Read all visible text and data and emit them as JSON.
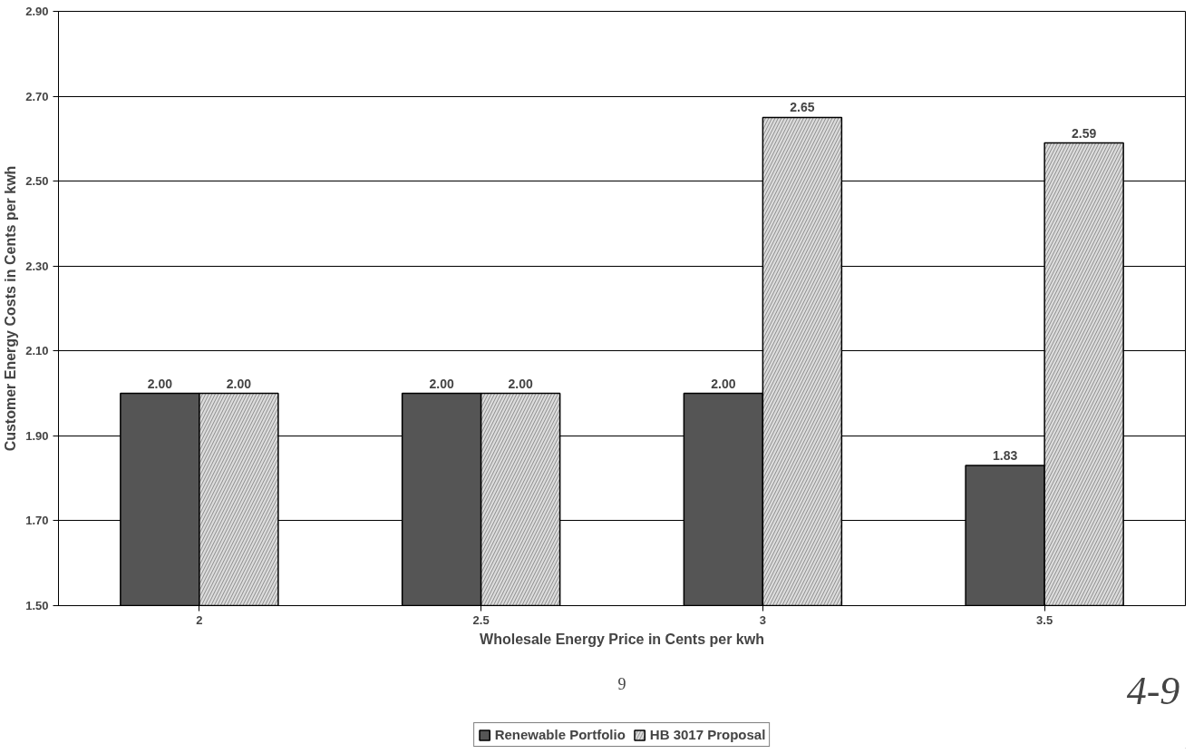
{
  "chart_data": {
    "type": "bar",
    "xlabel": "Wholesale Energy Price in Cents per kwh",
    "ylabel": "Customer Energy Costs in Cents per kwh",
    "categories": [
      "2",
      "2.5",
      "3",
      "3.5"
    ],
    "series": [
      {
        "name": "Renewable Portfolio",
        "color": "#555555",
        "values": [
          2.0,
          2.0,
          2.0,
          1.83
        ],
        "value_labels": [
          "2.00",
          "2.00",
          "2.00",
          "1.83"
        ]
      },
      {
        "name": "HB 3017 Proposal",
        "color": "#dddddd",
        "values": [
          2.0,
          2.0,
          2.65,
          2.59
        ],
        "value_labels": [
          "2.00",
          "2.00",
          "2.65",
          "2.59"
        ]
      }
    ],
    "ylim": [
      1.5,
      2.9
    ],
    "yticks": [
      {
        "value": 1.5,
        "label": "1.50"
      },
      {
        "value": 1.7,
        "label": "1.70"
      },
      {
        "value": 1.9,
        "label": "1.90"
      },
      {
        "value": 2.1,
        "label": "2.10"
      },
      {
        "value": 2.3,
        "label": "2.30"
      },
      {
        "value": 2.5,
        "label": "2.50"
      },
      {
        "value": 2.7,
        "label": "2.70"
      },
      {
        "value": 2.9,
        "label": "2.90"
      }
    ],
    "grid": "y",
    "legend": "bottom",
    "annotations": [
      "4-9",
      "9"
    ]
  }
}
